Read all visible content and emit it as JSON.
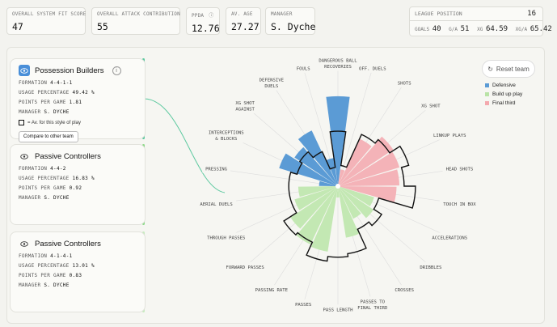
{
  "kpis": [
    {
      "label": "OVERALL SYSTEM FIT SCORE",
      "value": "47"
    },
    {
      "label": "OVERALL ATTACK CONTRIBUTION",
      "value": "55"
    },
    {
      "label": "PPDA",
      "value": "12.76"
    },
    {
      "label": "AV. AGE",
      "value": "27.27"
    },
    {
      "label": "MANAGER",
      "value": "S. Dyche"
    }
  ],
  "league": {
    "label": "LEAGUE POSITION",
    "position": "16",
    "goals_label": "GOALS",
    "goals": "40",
    "ga_label": "G/A",
    "ga": "51",
    "xg_label": "XG",
    "xg": "64.59",
    "xga_label": "XG/A",
    "xga": "65.42"
  },
  "cards": [
    {
      "title": "Possession Builders",
      "formation_label": "FORMATION",
      "formation": "4-4-1-1",
      "usage_label": "USAGE PERCENTAGE",
      "usage": "49.42 %",
      "ppg_label": "POINTS PER GAME",
      "ppg": "1.81",
      "manager_label": "MANAGER",
      "manager": "S. DYCHE",
      "note": "= Av. for this style of play",
      "compare": "Compare to other team"
    },
    {
      "title": "Passive Controllers",
      "formation_label": "FORMATION",
      "formation": "4-4-2",
      "usage_label": "USAGE PERCENTAGE",
      "usage": "16.83 %",
      "ppg_label": "POINTS PER GAME",
      "ppg": "0.92",
      "manager_label": "MANAGER",
      "manager": "S. DYCHE"
    },
    {
      "title": "Passive Controllers",
      "formation_label": "FORMATION",
      "formation": "4-1-4-1",
      "usage_label": "USAGE PERCENTAGE",
      "usage": "13.01 %",
      "ppg_label": "POINTS PER GAME",
      "ppg": "0.83",
      "manager_label": "MANAGER",
      "manager": "S. DYCHE"
    }
  ],
  "reset_label": "Reset team",
  "legend": [
    {
      "name": "Defensive",
      "color": "#5b9bd5"
    },
    {
      "name": "Build up play",
      "color": "#b9e3a6"
    },
    {
      "name": "Final third",
      "color": "#f4a9ae"
    }
  ],
  "colors": {
    "defensive": "#5b9bd5",
    "buildup": "#c3e8b3",
    "final": "#f4b3b8",
    "accent_teal": "#5ec9a0",
    "accent_green": "#a5dd8c"
  },
  "chart_data": {
    "type": "polar-bar",
    "rmax": 100,
    "categories": [
      {
        "name": "DANGEROUS BALL RECOVERIES",
        "group": "defensive",
        "value": 95,
        "avg": 58
      },
      {
        "name": "OFF. DUELS",
        "group": "final",
        "value": 18,
        "avg": 22
      },
      {
        "name": "SHOTS",
        "group": "final",
        "value": 55,
        "avg": 60
      },
      {
        "name": "XG SHOT",
        "group": "final",
        "value": 70,
        "avg": 65
      },
      {
        "name": "LINKUP PLAYS",
        "group": "final",
        "value": 68,
        "avg": 78
      },
      {
        "name": "HEAD SHOTS",
        "group": "final",
        "value": 65,
        "avg": 70
      },
      {
        "name": "TOUCH IN BOX",
        "group": "final",
        "value": 62,
        "avg": 82
      },
      {
        "name": "ACCELERATIONS",
        "group": "buildup",
        "value": 40,
        "avg": 45
      },
      {
        "name": "DRIBBLES",
        "group": "buildup",
        "value": 45,
        "avg": 55
      },
      {
        "name": "CROSSES",
        "group": "buildup",
        "value": 38,
        "avg": 50
      },
      {
        "name": "PASSES TO FINAL THIRD",
        "group": "buildup",
        "value": 55,
        "avg": 72
      },
      {
        "name": "PASS LENGTH",
        "group": "buildup",
        "value": 12,
        "avg": 75
      },
      {
        "name": "PASSES",
        "group": "buildup",
        "value": 70,
        "avg": 80
      },
      {
        "name": "PASSING RATE",
        "group": "buildup",
        "value": 68,
        "avg": 65
      },
      {
        "name": "FORWARD PASSES",
        "group": "buildup",
        "value": 60,
        "avg": 68
      },
      {
        "name": "THROUGH PASSES",
        "group": "buildup",
        "value": 48,
        "avg": 52
      },
      {
        "name": "AERIAL DUELS",
        "group": "buildup",
        "value": 42,
        "avg": 52
      },
      {
        "name": "PRESSING",
        "group": "defensive",
        "value": 20,
        "avg": 52
      },
      {
        "name": "INTERCEPTIONS & BLOCKS",
        "group": "defensive",
        "value": 65,
        "avg": 45
      },
      {
        "name": "XG SHOT AGAINST",
        "group": "defensive",
        "value": 55,
        "avg": 48
      },
      {
        "name": "DEFENSIVE DUELS",
        "group": "defensive",
        "value": 65,
        "avg": 40
      },
      {
        "name": "FOULS",
        "group": "defensive",
        "value": 30,
        "avg": 20
      }
    ]
  }
}
